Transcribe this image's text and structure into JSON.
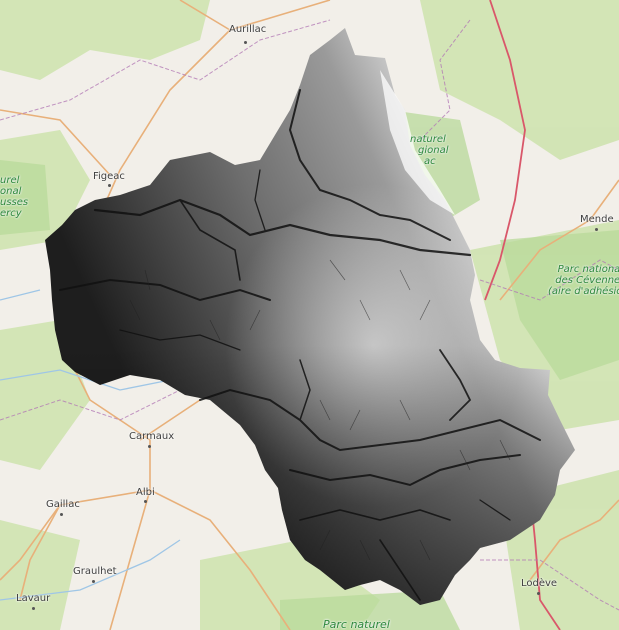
{
  "map": {
    "basemap": "openstreetmap",
    "overlay": "grayscale-elevation-dem",
    "colors": {
      "land": "#f2efe9",
      "forest": "#cfe3b0",
      "park": "#b8d99a",
      "road": "#e8b07a",
      "border": "#b37bb5",
      "dem_high": "#f5f5f5",
      "dem_low": "#151515"
    },
    "cities": {
      "aurillac": "Aurillac",
      "figeac": "Figeac",
      "mende": "Mende",
      "carmaux": "Carmaux",
      "albi": "Albi",
      "gaillac": "Gaillac",
      "graulhet": "Graulhet",
      "lavaur": "Lavaur",
      "lodeve": "Lodève"
    },
    "parks": {
      "aubrac_1": "naturel",
      "aubrac_2": "gional",
      "aubrac_3": "ac",
      "quercy_1": "urel",
      "quercy_2": "onal",
      "quercy_3": "usses",
      "quercy_4": "ercy",
      "cevennes_1": "Parc national",
      "cevennes_2": "des Cévennes",
      "cevennes_3": "(aire d'adhésion)",
      "bottom": "Parc naturel"
    }
  }
}
